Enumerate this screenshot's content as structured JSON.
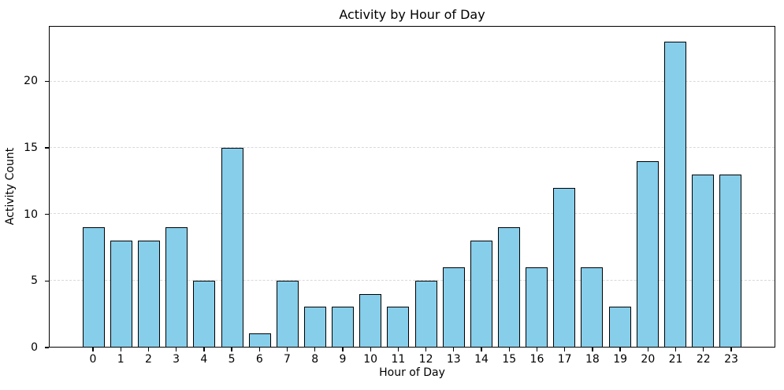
{
  "chart_data": {
    "type": "bar",
    "title": "Activity by Hour of Day",
    "xlabel": "Hour of Day",
    "ylabel": "Activity Count",
    "categories": [
      "0",
      "1",
      "2",
      "3",
      "4",
      "5",
      "6",
      "7",
      "8",
      "9",
      "10",
      "11",
      "12",
      "13",
      "14",
      "15",
      "16",
      "17",
      "18",
      "19",
      "20",
      "21",
      "22",
      "23"
    ],
    "values": [
      9,
      8,
      8,
      9,
      5,
      15,
      1,
      5,
      3,
      3,
      4,
      3,
      5,
      6,
      8,
      9,
      6,
      12,
      6,
      3,
      14,
      23,
      13,
      13
    ],
    "yticks": [
      0,
      5,
      10,
      15,
      20
    ],
    "ylim": [
      0,
      24.15
    ],
    "xlim": [
      -1.59,
      24.59
    ],
    "bar_width": 0.8,
    "grid": "horizontal-dashed",
    "legend": "none",
    "bar_color": "#87ceeb",
    "bar_edge_color": "#000000",
    "grid_color": "#d9d9d9",
    "spine_color": "#000000"
  }
}
